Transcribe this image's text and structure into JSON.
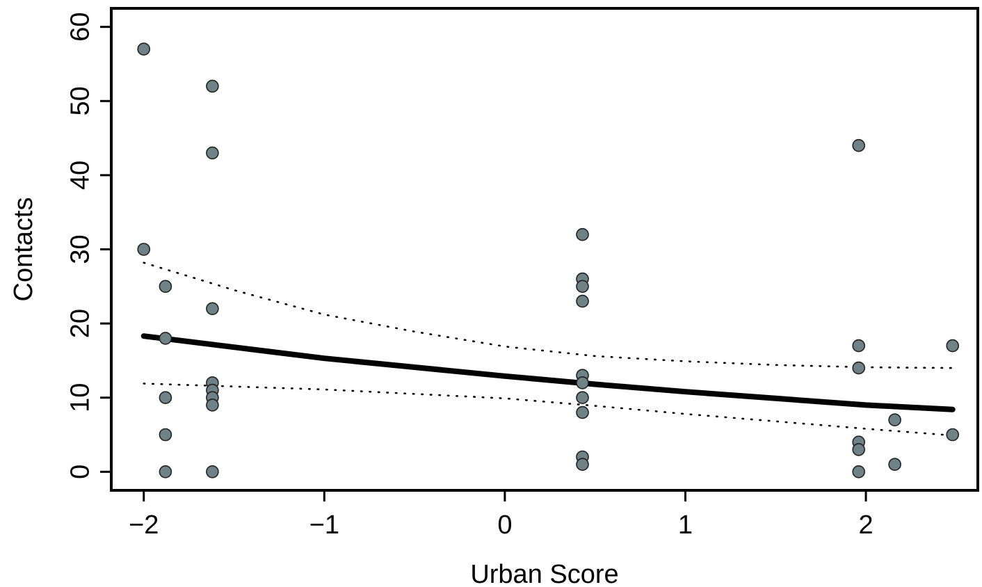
{
  "chart_data": {
    "type": "scatter",
    "title": "",
    "xlabel": "Urban Score",
    "ylabel": "Contacts",
    "xlim": [
      -2.18,
      2.62
    ],
    "ylim": [
      -2.5,
      62.5
    ],
    "xticks": [
      -2,
      -1,
      0,
      1,
      2
    ],
    "yticks": [
      0,
      10,
      20,
      30,
      40,
      50,
      60
    ],
    "xtick_labels": [
      "−2",
      "−1",
      "0",
      "1",
      "2"
    ],
    "ytick_labels": [
      "0",
      "10",
      "20",
      "30",
      "40",
      "50",
      "60"
    ],
    "grid": false,
    "legend": "none",
    "colors": {
      "point_fill": "#6e8287",
      "point_stroke": "#222222",
      "fit_line": "#000000",
      "ci_line": "#000000"
    },
    "points": [
      {
        "x": -2.0,
        "y": 57
      },
      {
        "x": -2.0,
        "y": 30
      },
      {
        "x": -1.88,
        "y": 25
      },
      {
        "x": -1.88,
        "y": 18
      },
      {
        "x": -1.88,
        "y": 10
      },
      {
        "x": -1.88,
        "y": 5
      },
      {
        "x": -1.88,
        "y": 0
      },
      {
        "x": -1.62,
        "y": 52
      },
      {
        "x": -1.62,
        "y": 43
      },
      {
        "x": -1.62,
        "y": 22
      },
      {
        "x": -1.62,
        "y": 12
      },
      {
        "x": -1.62,
        "y": 11
      },
      {
        "x": -1.62,
        "y": 10
      },
      {
        "x": -1.62,
        "y": 9
      },
      {
        "x": -1.62,
        "y": 0
      },
      {
        "x": 0.43,
        "y": 32
      },
      {
        "x": 0.43,
        "y": 26
      },
      {
        "x": 0.43,
        "y": 25
      },
      {
        "x": 0.43,
        "y": 23
      },
      {
        "x": 0.43,
        "y": 13
      },
      {
        "x": 0.43,
        "y": 12
      },
      {
        "x": 0.43,
        "y": 10
      },
      {
        "x": 0.43,
        "y": 8
      },
      {
        "x": 0.43,
        "y": 2
      },
      {
        "x": 0.43,
        "y": 1
      },
      {
        "x": 1.96,
        "y": 44
      },
      {
        "x": 1.96,
        "y": 17
      },
      {
        "x": 1.96,
        "y": 14
      },
      {
        "x": 1.96,
        "y": 4
      },
      {
        "x": 1.96,
        "y": 3
      },
      {
        "x": 1.96,
        "y": 0
      },
      {
        "x": 2.16,
        "y": 7
      },
      {
        "x": 2.16,
        "y": 1
      },
      {
        "x": 2.48,
        "y": 17
      },
      {
        "x": 2.48,
        "y": 5
      }
    ],
    "fit_curve": {
      "x": [
        -2.0,
        -1.5,
        -1.0,
        -0.5,
        0.0,
        0.5,
        1.0,
        1.5,
        2.0,
        2.48
      ],
      "y": [
        18.3,
        16.8,
        15.3,
        14.1,
        12.9,
        11.8,
        10.8,
        9.9,
        9.0,
        8.4
      ]
    },
    "ci_upper": {
      "x": [
        -2.0,
        -1.5,
        -1.0,
        -0.5,
        0.0,
        0.5,
        1.0,
        1.5,
        2.0,
        2.48
      ],
      "y": [
        28.2,
        24.5,
        21.2,
        18.9,
        16.9,
        15.6,
        14.9,
        14.4,
        14.1,
        14.0
      ]
    },
    "ci_lower": {
      "x": [
        -2.0,
        -1.5,
        -1.0,
        -0.5,
        0.0,
        0.5,
        1.0,
        1.5,
        2.0,
        2.48
      ],
      "y": [
        11.9,
        11.5,
        11.1,
        10.5,
        9.9,
        8.9,
        7.8,
        6.8,
        5.8,
        4.9
      ]
    }
  }
}
